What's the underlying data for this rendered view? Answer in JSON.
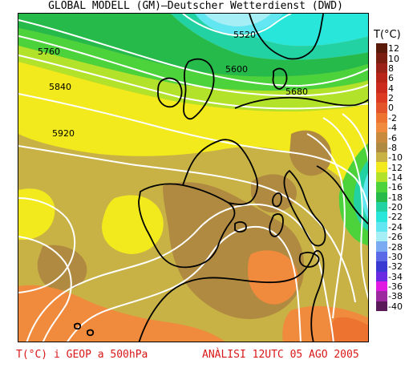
{
  "header": {
    "title": "GLOBAL MODELL (GM)—Deutscher Wetterdienst (DWD)"
  },
  "map": {
    "contour_labels": [
      "5520",
      "5600",
      "5680",
      "5760",
      "5840",
      "5920"
    ],
    "contour_color": "#ffffff",
    "coastline_color": "#000000"
  },
  "legend": {
    "title": "T(°C)",
    "entries": [
      {
        "label": "12",
        "color": "#5a1a0a"
      },
      {
        "label": "10",
        "color": "#7a1e10"
      },
      {
        "label": "8",
        "color": "#9a2216"
      },
      {
        "label": "6",
        "color": "#b82418"
      },
      {
        "label": "4",
        "color": "#cc2a1c"
      },
      {
        "label": "2",
        "color": "#dd3a22"
      },
      {
        "label": "0",
        "color": "#e4542a"
      },
      {
        "label": "-2",
        "color": "#ec7330"
      },
      {
        "label": "-4",
        "color": "#f08a3c"
      },
      {
        "label": "-6",
        "color": "#c88a3c"
      },
      {
        "label": "-8",
        "color": "#b08a40"
      },
      {
        "label": "-10",
        "color": "#c8b246"
      },
      {
        "label": "-12",
        "color": "#f2ea1c"
      },
      {
        "label": "-14",
        "color": "#b2e22a"
      },
      {
        "label": "-16",
        "color": "#4cd23a"
      },
      {
        "label": "-18",
        "color": "#26ba4a"
      },
      {
        "label": "-20",
        "color": "#22d2a2"
      },
      {
        "label": "-22",
        "color": "#28e6da"
      },
      {
        "label": "-24",
        "color": "#62e6f2"
      },
      {
        "label": "-26",
        "color": "#a6eef6"
      },
      {
        "label": "-28",
        "color": "#7aaaf2"
      },
      {
        "label": "-30",
        "color": "#5a6ae6"
      },
      {
        "label": "-32",
        "color": "#3a3ad2"
      },
      {
        "label": "-34",
        "color": "#6a2ae2"
      },
      {
        "label": "-36",
        "color": "#e01ae0"
      },
      {
        "label": "-38",
        "color": "#9a2a9e"
      },
      {
        "label": "-40",
        "color": "#5a1a5a"
      }
    ]
  },
  "footer": {
    "left": "T(°C) i GEOP a 500hPa",
    "right": "ANÀLISI 12UTC 05 AGO 2005"
  }
}
